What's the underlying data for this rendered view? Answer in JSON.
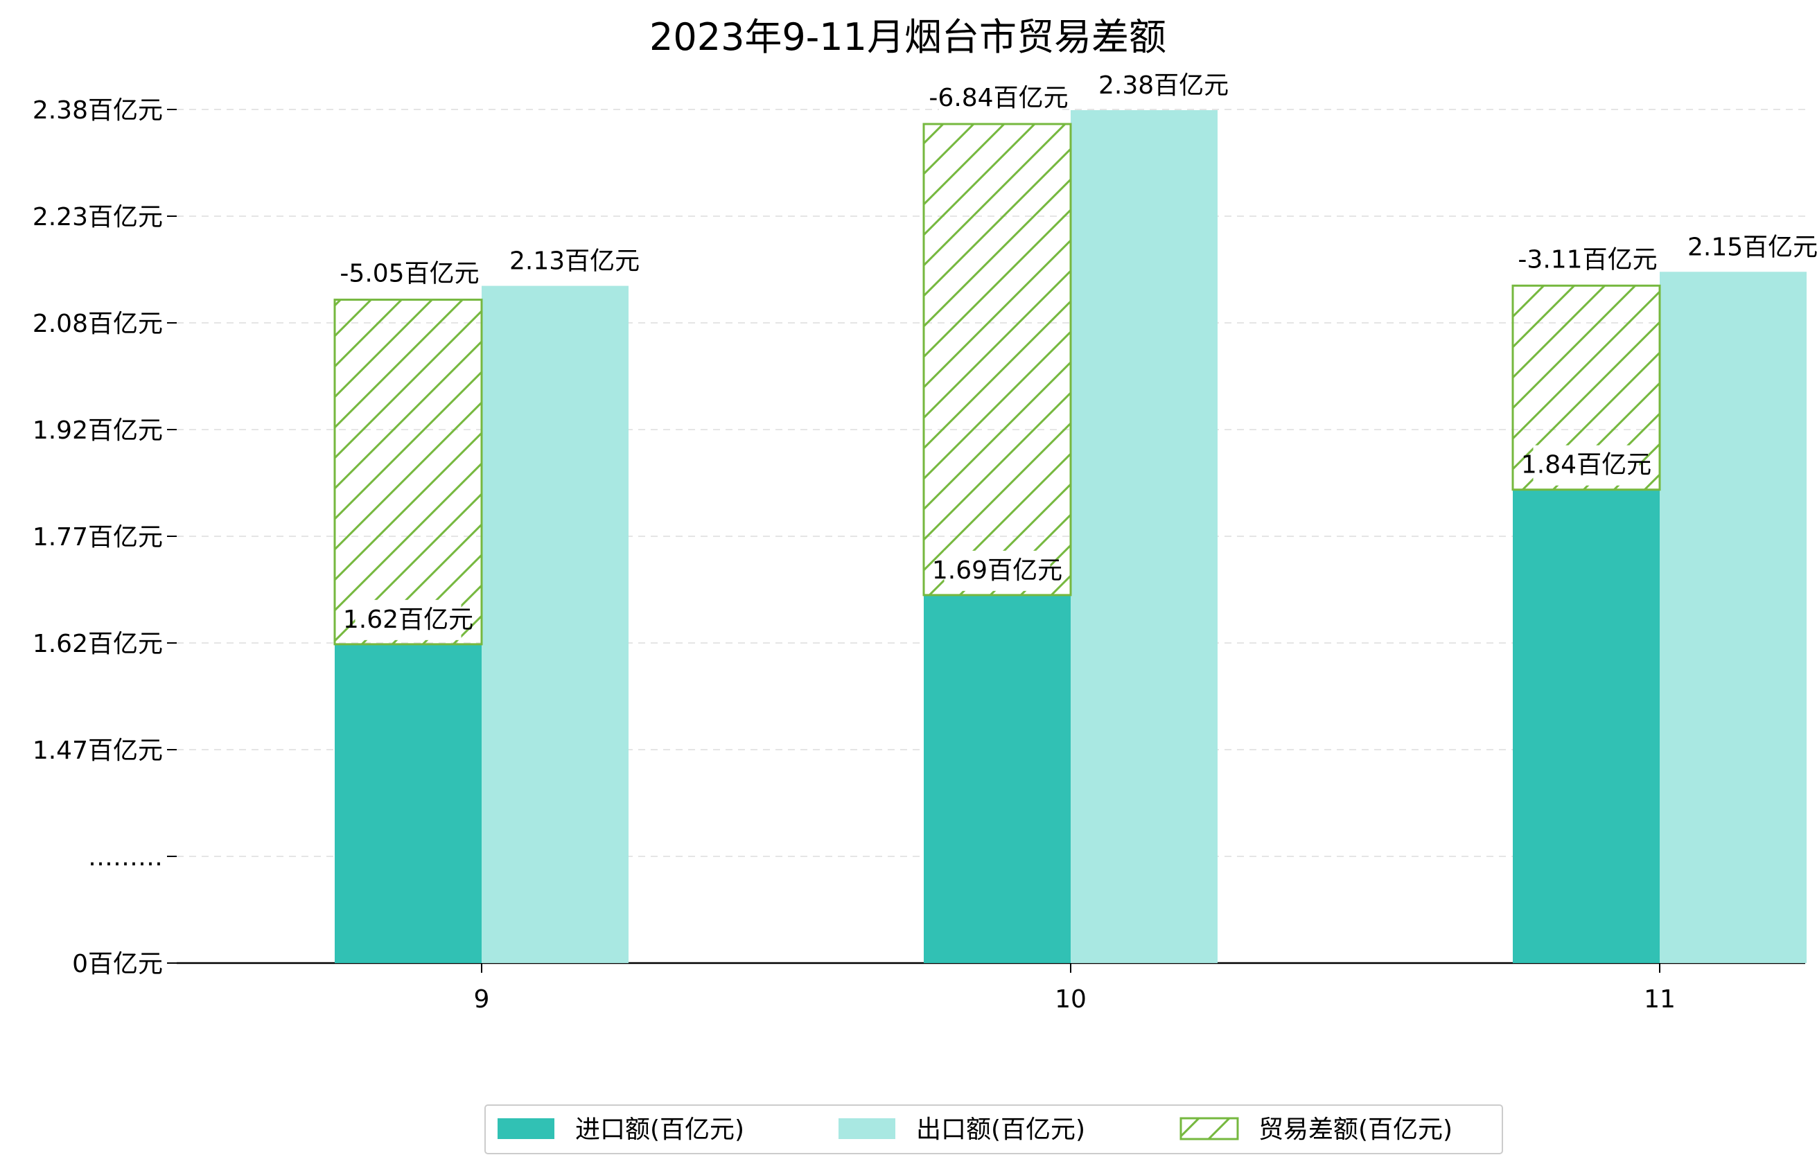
{
  "chart_data": {
    "type": "bar",
    "title": "2023年9-11月烟台市贸易差额",
    "categories": [
      "9",
      "10",
      "11"
    ],
    "y_tick_labels": [
      "0百亿元",
      "………",
      "1.47百亿元",
      "1.62百亿元",
      "1.77百亿元",
      "1.92百亿元",
      "2.08百亿元",
      "2.23百亿元",
      "2.38百亿元"
    ],
    "y_ticks": [
      0,
      1.32,
      1.47,
      1.62,
      1.77,
      1.92,
      2.08,
      2.23,
      2.38
    ],
    "ylim": [
      0,
      2.38
    ],
    "axis_break": true,
    "grid": "horizontal-dashed",
    "legend_position": "bottom-center",
    "series": [
      {
        "name": "进口额(百亿元)",
        "values": [
          1.62,
          1.69,
          1.84
        ],
        "labels": [
          "1.62百亿元",
          "1.69百亿元",
          "1.84百亿元"
        ],
        "color": "#31c1b4"
      },
      {
        "name": "出口额(百亿元)",
        "values": [
          2.13,
          2.38,
          2.15
        ],
        "labels": [
          "2.13百亿元",
          "2.38百亿元",
          "2.15百亿元"
        ],
        "color": "#a9e8e2"
      },
      {
        "name": "贸易差额(百亿元)",
        "values": [
          -5.05,
          -6.84,
          -3.11
        ],
        "labels": [
          "-5.05百亿元",
          "-6.84百亿元",
          "-3.11百亿元"
        ],
        "color": "#76b83f",
        "style": "hatched",
        "stacked_on": "进口额(百亿元)"
      }
    ]
  }
}
